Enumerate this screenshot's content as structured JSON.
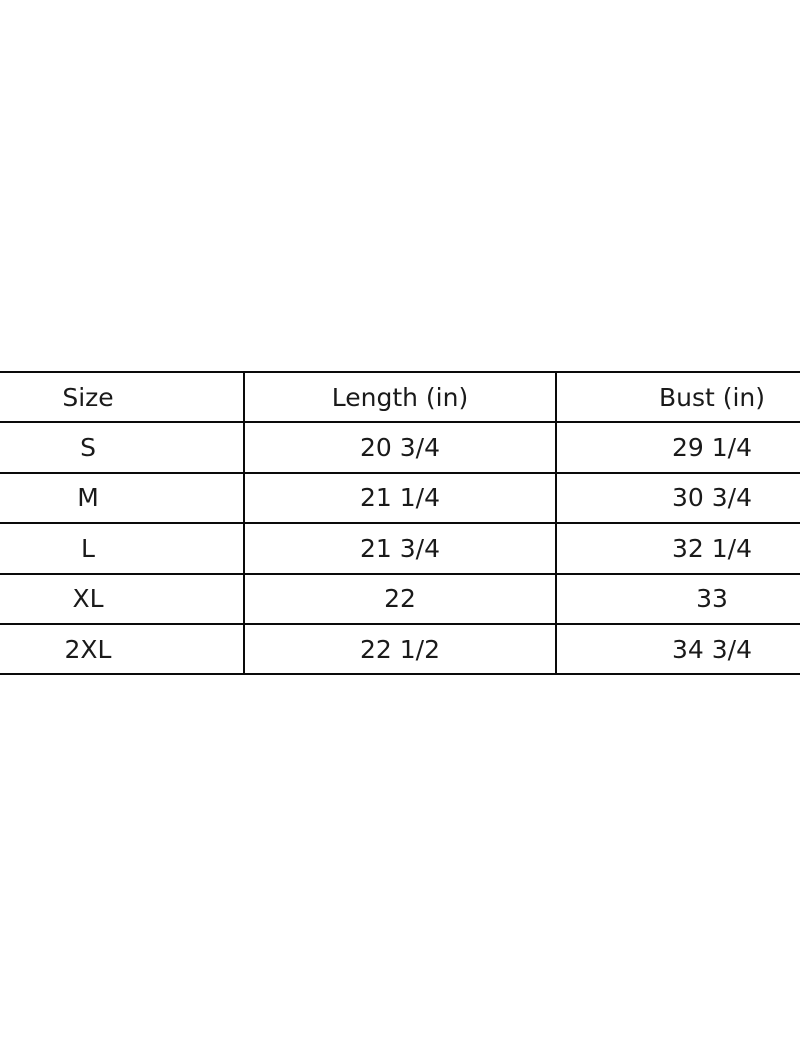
{
  "chart_data": {
    "type": "table",
    "title": "",
    "columns": [
      "Size",
      "Length (in)",
      "Bust (in)"
    ],
    "rows": [
      {
        "size": "S",
        "length_in": "20 3/4",
        "bust_in": "29 1/4"
      },
      {
        "size": "M",
        "length_in": "21 1/4",
        "bust_in": "30 3/4"
      },
      {
        "size": "L",
        "length_in": "21 3/4",
        "bust_in": "32 1/4"
      },
      {
        "size": "XL",
        "length_in": "22",
        "bust_in": "33"
      },
      {
        "size": "2XL",
        "length_in": "22 1/2",
        "bust_in": "34 3/4"
      }
    ],
    "layout_hints": {
      "grid": "on",
      "text_align": "center",
      "border_color": "#0a0a0a",
      "text_color": "#1a1a1a",
      "background_color": "#ffffff",
      "table_cropped_horizontally": true
    }
  }
}
